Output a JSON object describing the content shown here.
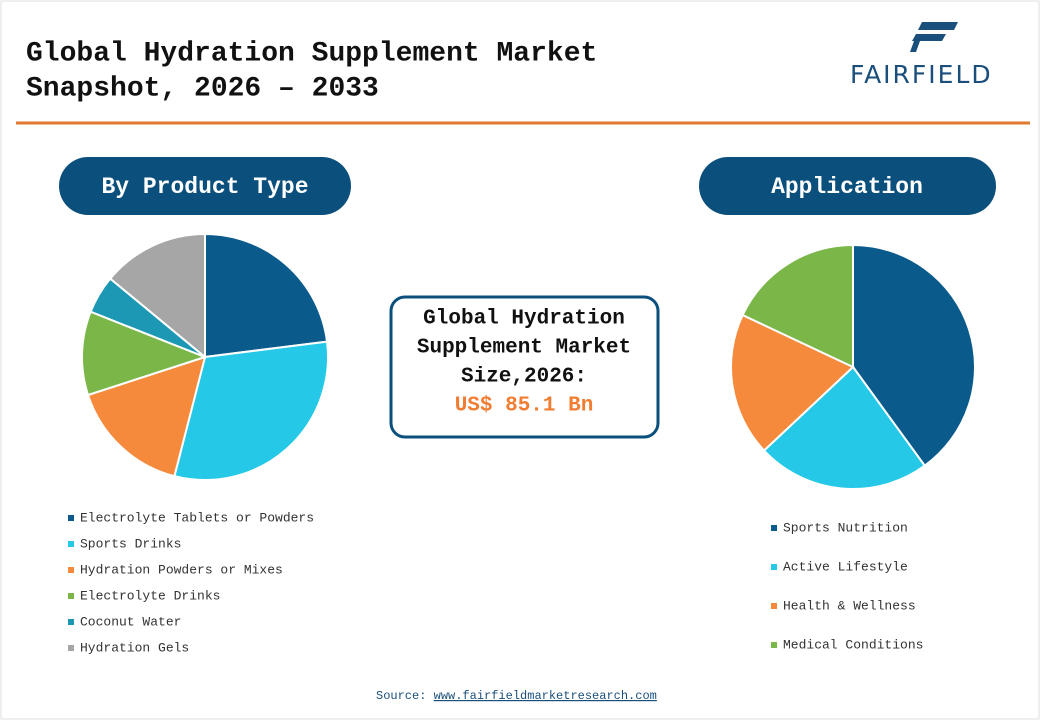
{
  "header": {
    "title_lines": [
      "Global Hydration Supplement Market",
      "Snapshot, 2026 – 2033"
    ],
    "logo": "FAIRFIELD"
  },
  "chart_data": [
    {
      "type": "pie",
      "title": "By Product Type",
      "categories": [
        "Electrolyte Tablets or Powders",
        "Sports Drinks",
        "Hydration Powders or Mixes",
        "Electrolyte Drinks",
        "Coconut Water",
        "Hydration Gels"
      ],
      "values": [
        23,
        31,
        16,
        11,
        5,
        14
      ],
      "colors": [
        "#0b5a8c",
        "#25c8e6",
        "#f58a3c",
        "#7ab648",
        "#1c97b4",
        "#a6a6a6"
      ]
    },
    {
      "type": "pie",
      "title": "Application",
      "categories": [
        "Sports Nutrition",
        "Active Lifestyle",
        "Health & Wellness",
        "Medical Conditions"
      ],
      "values": [
        40,
        23,
        19,
        18
      ],
      "colors": [
        "#0b5a8c",
        "#25c8e6",
        "#f58a3c",
        "#7ab648"
      ]
    }
  ],
  "summary": {
    "lines": [
      "Global Hydration",
      "Supplement Market",
      "Size,2026:"
    ],
    "value": "US$ 85.1 Bn"
  },
  "source": {
    "label": "Source:",
    "link": "www.fairfieldmarketresearch.com"
  }
}
